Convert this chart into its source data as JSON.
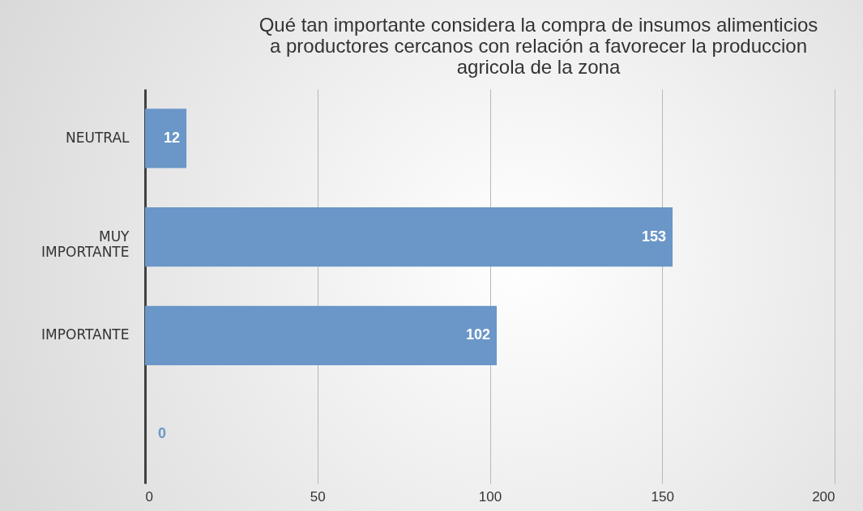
{
  "chart_data": {
    "type": "bar",
    "orientation": "horizontal",
    "title": "Qué tan importante considera la compra de insumos alimenticios a productores cercanos con relación a favorecer la produccion agricola de la zona",
    "categories": [
      "NEUTRAL",
      "MUY IMPORTANTE",
      "IMPORTANTE",
      null
    ],
    "values": [
      12,
      153,
      102,
      0
    ],
    "color": "#6a96c8",
    "xlim": [
      0,
      200
    ],
    "xticks": [
      0,
      50,
      100,
      150,
      200
    ],
    "grid": "x",
    "data_labels": true
  }
}
